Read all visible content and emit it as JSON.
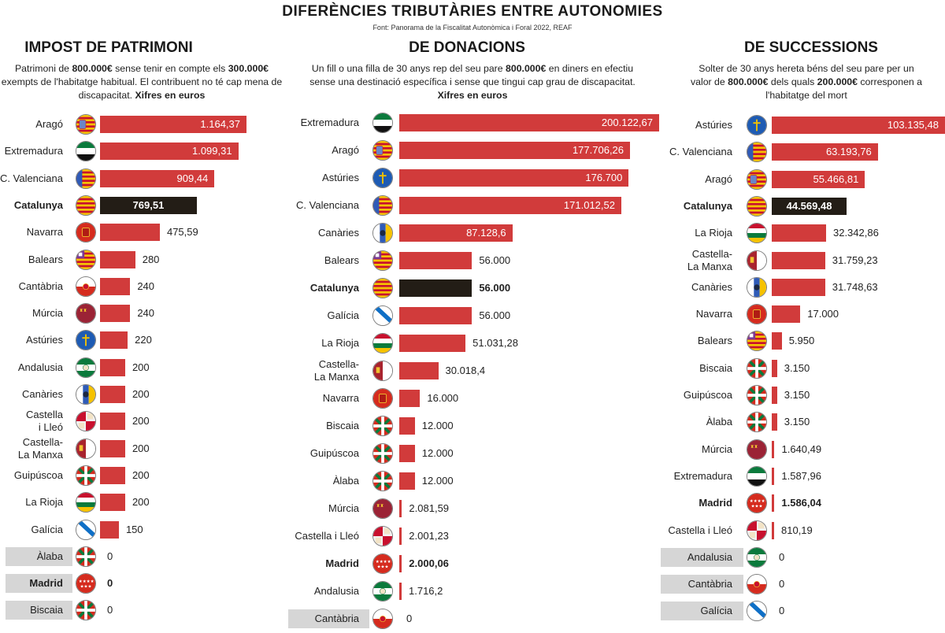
{
  "header": {
    "title": "DIFERÈNCIES TRIBUTÀRIES ENTRE AUTONOMIES",
    "source": "Font: Panorama de la Fiscalitat Autonòmica i Foral 2022, REAF"
  },
  "colors": {
    "bar": "#d13b3b",
    "highlight_bar": "#231d16",
    "zero_band": "#d6d6d6"
  },
  "chart_data": [
    {
      "type": "bar",
      "orientation": "horizontal",
      "title": "IMPOST DE PATRIMONI",
      "description": [
        {
          "t": "Patrimoni de "
        },
        {
          "t": "800.000€",
          "b": true
        },
        {
          "t": " sense tenir en compte els "
        },
        {
          "t": "300.000€",
          "b": true
        },
        {
          "t": " exempts de l'habitatge habitual. El contribuent no té cap mena de discapacitat. "
        },
        {
          "t": "Xifres en euros",
          "b": true
        }
      ],
      "categories": [
        "Aragó",
        "Extremadura",
        "C. Valenciana",
        "Catalunya",
        "Navarra",
        "Balears",
        "Cantàbria",
        "Múrcia",
        "Astúries",
        "Andalusia",
        "Canàries",
        "Castella i Lleó",
        "Castella-La Manxa",
        "Guipúscoa",
        "La Rioja",
        "Galícia",
        "Àlaba",
        "Madrid",
        "Biscaia"
      ],
      "values": [
        1164.37,
        1099.31,
        909.44,
        769.51,
        475.59,
        280,
        240,
        240,
        220,
        200,
        200,
        200,
        200,
        200,
        200,
        150,
        0,
        0,
        0
      ],
      "value_labels": [
        "1.164,37",
        "1.099,31",
        "909,44",
        "769,51",
        "475,59",
        "280",
        "240",
        "240",
        "220",
        "200",
        "200",
        "200",
        "200",
        "200",
        "200",
        "150",
        "0",
        "0",
        "0"
      ],
      "flags": [
        "flag-aragon",
        "flag-extremadura",
        "flag-valencia",
        "flag-catalonia",
        "flag-navarra",
        "flag-balears",
        "flag-cantabria",
        "flag-murcia",
        "flag-asturias",
        "flag-andalusia",
        "flag-canarias",
        "flag-castilla-leon",
        "flag-castilla-la-mancha",
        "flag-basque",
        "flag-la-rioja",
        "flag-galicia",
        "flag-basque",
        "flag-madrid",
        "flag-basque"
      ],
      "highlight": [
        "Catalunya",
        "Madrid"
      ],
      "xlim": [
        0,
        1164.37
      ]
    },
    {
      "type": "bar",
      "orientation": "horizontal",
      "title": "DE DONACIONS",
      "description": [
        {
          "t": "Un fill o una filla de 30 anys rep del seu pare "
        },
        {
          "t": "800.000€",
          "b": true
        },
        {
          "t": " en diners en efectiu sense una destinació específica i sense que tingui cap grau de discapacitat. "
        },
        {
          "t": "Xifres en euros",
          "b": true
        }
      ],
      "categories": [
        "Extremadura",
        "Aragó",
        "Astúries",
        "C. Valenciana",
        "Canàries",
        "Balears",
        "Catalunya",
        "Galícia",
        "La Rioja",
        "Castella-La Manxa",
        "Navarra",
        "Biscaia",
        "Guipúscoa",
        "Àlaba",
        "Múrcia",
        "Castella i Lleó",
        "Madrid",
        "Andalusia",
        "Cantàbria"
      ],
      "values": [
        200122.67,
        177706.26,
        176700,
        171012.52,
        87128.6,
        56000,
        56000,
        56000,
        51031.28,
        30018.4,
        16000,
        12000,
        12000,
        12000,
        2081.59,
        2001.23,
        2000.06,
        1716.2,
        0
      ],
      "value_labels": [
        "200.122,67",
        "177.706,26",
        "176.700",
        "171.012,52",
        "87.128,6",
        "56.000",
        "56.000",
        "56.000",
        "51.031,28",
        "30.018,4",
        "16.000",
        "12.000",
        "12.000",
        "12.000",
        "2.081,59",
        "2.001,23",
        "2.000,06",
        "1.716,2",
        "0"
      ],
      "flags": [
        "flag-extremadura",
        "flag-aragon",
        "flag-asturias",
        "flag-valencia",
        "flag-canarias",
        "flag-balears",
        "flag-catalonia",
        "flag-galicia",
        "flag-la-rioja",
        "flag-castilla-la-mancha",
        "flag-navarra",
        "flag-basque",
        "flag-basque",
        "flag-basque",
        "flag-murcia",
        "flag-castilla-leon",
        "flag-madrid",
        "flag-andalusia",
        "flag-cantabria"
      ],
      "highlight": [
        "Catalunya",
        "Madrid"
      ],
      "xlim": [
        0,
        200122.67
      ]
    },
    {
      "type": "bar",
      "orientation": "horizontal",
      "title": "DE SUCCESSIONS",
      "description": [
        {
          "t": "Solter de 30 anys hereta béns del seu pare per un valor de "
        },
        {
          "t": "800.000€",
          "b": true
        },
        {
          "t": " dels quals "
        },
        {
          "t": "200.000€",
          "b": true
        },
        {
          "t": " corresponen a l'habitatge del mort"
        }
      ],
      "categories": [
        "Astúries",
        "C. Valenciana",
        "Aragó",
        "Catalunya",
        "La Rioja",
        "Castella-La Manxa",
        "Canàries",
        "Navarra",
        "Balears",
        "Biscaia",
        "Guipúscoa",
        "Àlaba",
        "Múrcia",
        "Extremadura",
        "Madrid",
        "Castella i Lleó",
        "Andalusia",
        "Cantàbria",
        "Galícia"
      ],
      "values": [
        103135.48,
        63193.76,
        55466.81,
        44569.48,
        32342.86,
        31759.23,
        31748.63,
        17000,
        5950,
        3150,
        3150,
        3150,
        1640.49,
        1587.96,
        1586.04,
        810.19,
        0,
        0,
        0
      ],
      "value_labels": [
        "103.135,48",
        "63.193,76",
        "55.466,81",
        "44.569,48",
        "32.342,86",
        "31.759,23",
        "31.748,63",
        "17.000",
        "5.950",
        "3.150",
        "3.150",
        "3.150",
        "1.640,49",
        "1.587,96",
        "1.586,04",
        "810,19",
        "0",
        "0",
        "0"
      ],
      "flags": [
        "flag-asturias",
        "flag-valencia",
        "flag-aragon",
        "flag-catalonia",
        "flag-la-rioja",
        "flag-castilla-la-mancha",
        "flag-canarias",
        "flag-navarra",
        "flag-balears",
        "flag-basque",
        "flag-basque",
        "flag-basque",
        "flag-murcia",
        "flag-extremadura",
        "flag-madrid",
        "flag-castilla-leon",
        "flag-andalusia",
        "flag-cantabria",
        "flag-galicia"
      ],
      "highlight": [
        "Catalunya",
        "Madrid"
      ],
      "xlim": [
        0,
        103135.48
      ]
    }
  ]
}
